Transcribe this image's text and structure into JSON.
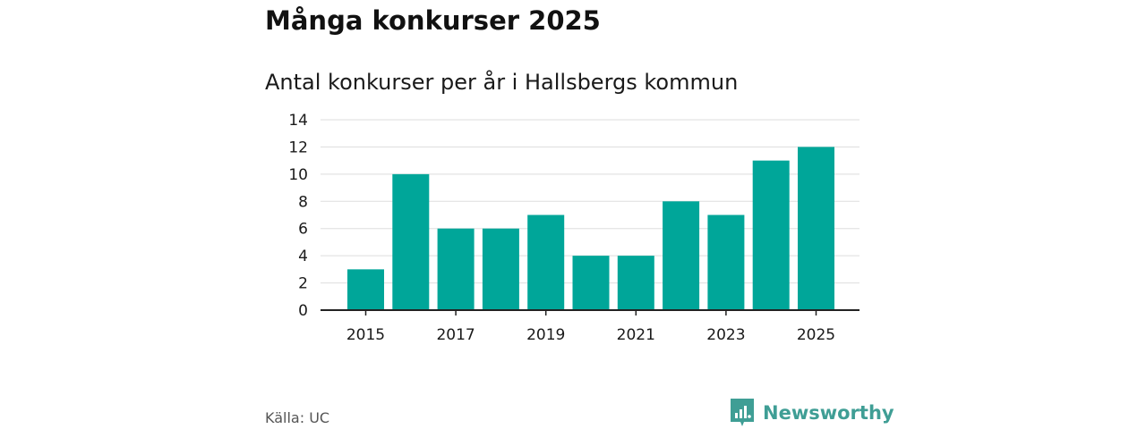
{
  "header": {
    "title": "Många konkurser 2025",
    "subtitle": "Antal konkurser per år i Hallsbergs kommun"
  },
  "footer": {
    "source": "Källa: UC",
    "brand": "Newsworthy",
    "brand_color": "#3f9e95"
  },
  "colors": {
    "bar": "#00a699",
    "grid": "#dddddd",
    "axis": "#222222"
  },
  "chart_data": {
    "type": "bar",
    "categories": [
      "2015",
      "2016",
      "2017",
      "2018",
      "2019",
      "2020",
      "2021",
      "2022",
      "2023",
      "2024",
      "2025"
    ],
    "values": [
      3,
      10,
      6,
      6,
      7,
      4,
      4,
      8,
      7,
      11,
      12
    ],
    "tick_labels_x": [
      "2015",
      "2017",
      "2019",
      "2021",
      "2023",
      "2025"
    ],
    "yticks": [
      0,
      2,
      4,
      6,
      8,
      10,
      12,
      14
    ],
    "ylim": [
      0,
      14
    ],
    "grid": true,
    "legend": "none"
  }
}
